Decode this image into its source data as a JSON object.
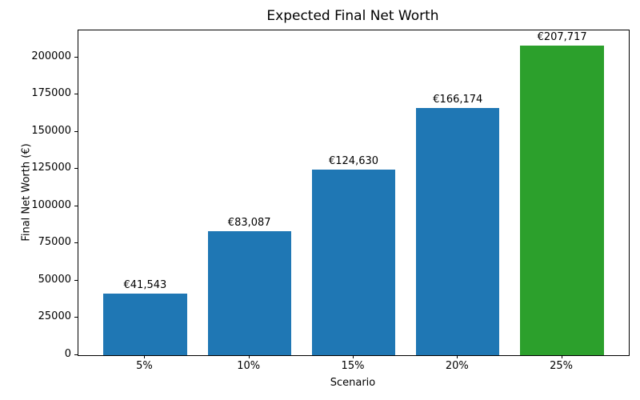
{
  "chart_data": {
    "type": "bar",
    "title": "Expected Final Net Worth",
    "xlabel": "Scenario",
    "ylabel": "Final Net Worth (€)",
    "categories": [
      "5%",
      "10%",
      "15%",
      "20%",
      "25%"
    ],
    "values": [
      41543,
      83087,
      124630,
      166174,
      207717
    ],
    "bar_labels": [
      "€41,543",
      "€83,087",
      "€124,630",
      "€166,174",
      "€207,717"
    ],
    "bar_colors": [
      "#1f77b4",
      "#1f77b4",
      "#1f77b4",
      "#1f77b4",
      "#2ca02c"
    ],
    "highlight_color": "#2ca02c",
    "default_bar_color": "#1f77b4",
    "ylim": [
      0,
      218103
    ],
    "yticks": [
      0,
      25000,
      50000,
      75000,
      100000,
      125000,
      150000,
      175000,
      200000
    ],
    "grid": false,
    "legend_position": "none",
    "bar_relative_width": 0.8
  }
}
